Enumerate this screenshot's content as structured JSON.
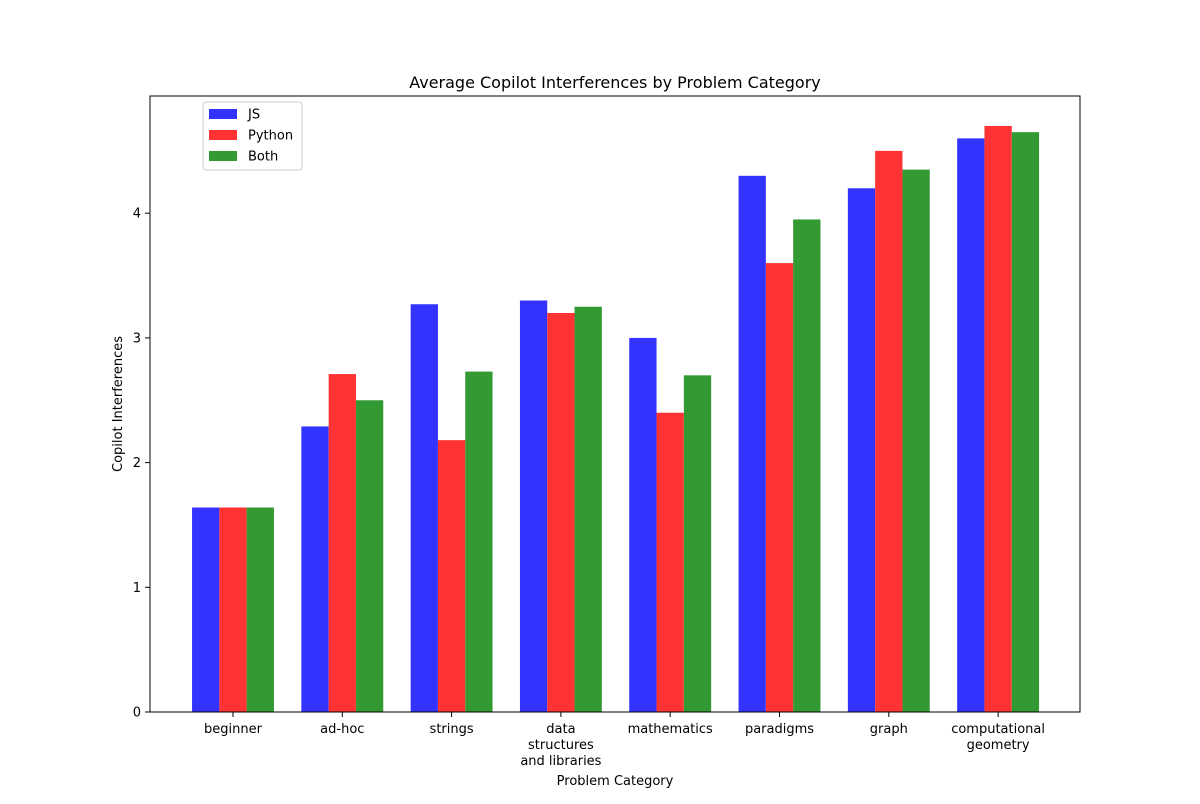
{
  "chart_data": {
    "type": "bar",
    "title": "Average Copilot Interferences by Problem Category",
    "xlabel": "Problem Category",
    "ylabel": "Copilot Interferences",
    "categories": [
      [
        "beginner"
      ],
      [
        "ad-hoc"
      ],
      [
        "strings"
      ],
      [
        "data",
        "structures",
        "and libraries"
      ],
      [
        "mathematics"
      ],
      [
        "paradigms"
      ],
      [
        "graph"
      ],
      [
        "computational",
        "geometry"
      ]
    ],
    "series": [
      {
        "name": "JS",
        "color": "#3333ff",
        "values": [
          1.64,
          2.29,
          3.27,
          3.3,
          3.0,
          4.3,
          4.2,
          4.6
        ]
      },
      {
        "name": "Python",
        "color": "#ff3333",
        "values": [
          1.64,
          2.71,
          2.18,
          3.2,
          2.4,
          3.6,
          4.5,
          4.7
        ]
      },
      {
        "name": "Both",
        "color": "#339933",
        "values": [
          1.64,
          2.5,
          2.73,
          3.25,
          2.7,
          3.95,
          4.35,
          4.65
        ]
      }
    ],
    "yticks": [
      0,
      1,
      2,
      3,
      4
    ],
    "ylim": [
      0,
      4.94
    ],
    "grid": false,
    "legend_position": "top-left"
  }
}
